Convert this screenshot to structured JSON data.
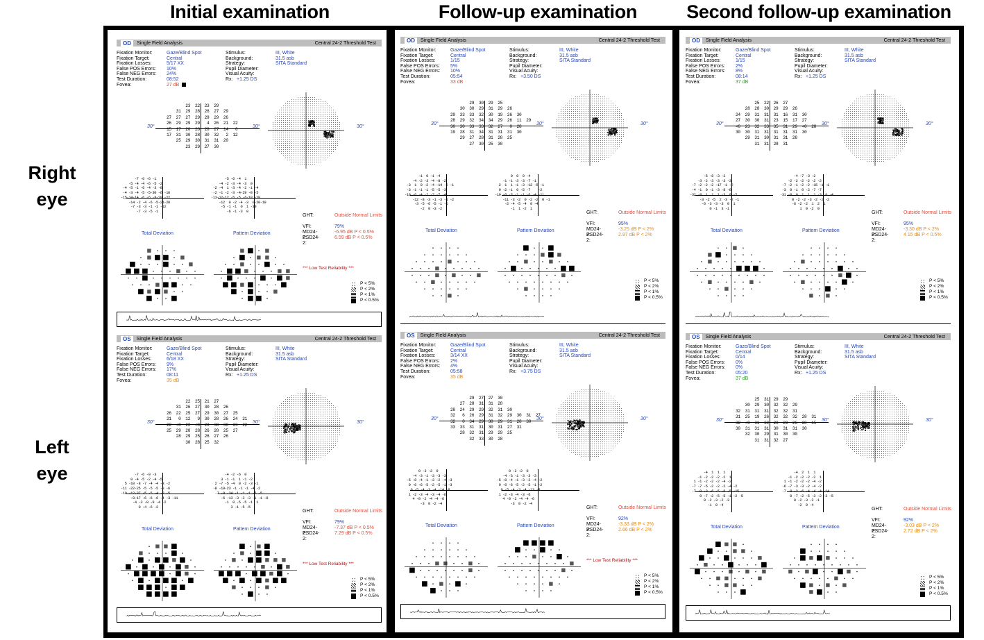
{
  "columns": [
    "Initial examination",
    "Follow-up examination",
    "Second follow-up examination"
  ],
  "rows": [
    "Right eye",
    "Left eye"
  ],
  "common": {
    "title": "Single Field Analysis",
    "test": "Central 24-2 Threshold Test",
    "labels": {
      "fixation_monitor": "Fixation Monitor:",
      "fixation_target": "Fixation Target:",
      "fixation_losses": "Fixation Losses:",
      "false_pos": "False POS Errors:",
      "false_neg": "False NEG Errors:",
      "duration": "Test Duration:",
      "fovea": "Fovea:",
      "stimulus": "Stimulus:",
      "background": "Background:",
      "strategy": "Strategy:",
      "pupil": "Pupil Diameter:",
      "acuity": "Visual Acuity:",
      "rx": "Rx:"
    },
    "values": {
      "fixation_monitor": "Gaze/Blind Spot",
      "fixation_target": "Central",
      "stimulus": "III, White",
      "background": "31.5 asb",
      "strategy": "SITA Standard"
    },
    "deg": "30°",
    "total_deviation": "Total Deviation",
    "pattern_deviation": "Pattern Deviation",
    "ght_label": "GHT:",
    "vfi_label": "VFI:",
    "md_label": "MD24-2:",
    "psd_label": "PSD24-2:",
    "ght_value": "Outside Normal Limits",
    "low_reliability": "*** Low Test Reliability ***",
    "legend": [
      "P < 5%",
      "P < 2%",
      "P < 1%",
      "P < 0.5%"
    ]
  },
  "reports": [
    {
      "eye": "OD",
      "fixation_losses": "5/17 XX",
      "false_pos": "10%",
      "false_neg": "24%",
      "duration": "08:52",
      "rx": "+1.25 DS",
      "fovea": "27 dB",
      "fovea_color": "red",
      "vfi": "79%",
      "md": "-6.95 dB P < 0.5%",
      "psd": "6.59 dB P < 0.5%",
      "md_color": "red",
      "low_reliability": true,
      "grid": [
        "        23  22  23  29        ",
        "    31  29  28  26  27  29    ",
        "27  27  27  29  29  29  26    ",
        "26  29  29  29   4  26  21  22",
        "15  17  20  28  28  27  14   0",
        "17  31  30  28  30  32   2  12",
        "    25  29  30  31  31  20    ",
        "        23  29  27  30        "
      ],
      "td": [
        "       -7 -6 -6 -1       ",
        "    -5 -4 -4 -6 -5 -2    ",
        " -4 -5 -1 -6 -4 -3 -8    ",
        " -4 -3 -4 -5 -5-30 -6 -10",
        "-15-14-14 -6 -6 -8-20 -22",
        "    -14 -2 -4 -6 -5-21-20",
        "     -7 -3 -3 -1 -1 -12   ",
        "        -7 -3 -5 -1      "
      ],
      "pd": [
        "       -5 -6 -4  1       ",
        "    -4 -2 -3 -4 -3  0    ",
        " -2 -4  1 -3 -4 -2 -1 -4 ",
        " -2 -1 -2 -3 -4-29 -8 -5 ",
        "-13-12-12 -5 -5 -6-18 -20",
        "    -12  0 -2 -4 -3  0-20-19",
        "     -5 -1 -1  0  1 -10  ",
        "        -6 -1 -3  0      "
      ]
    },
    {
      "eye": "OD",
      "fixation_losses": "1/15",
      "false_pos": "5%",
      "false_neg": "10%",
      "duration": "05:54",
      "rx": "+3.50 DS",
      "fovea": "33 dB",
      "fovea_color": "red",
      "vfi": "95%",
      "md": "-3.25 dB P < 2%",
      "psd": "2.97 dB P < 2%",
      "md_color": "orange",
      "low_reliability": false,
      "grid": [
        "        29  30  29  25        ",
        "    30  30  29  31  29  26    ",
        "29  33  33  32  30  19  26  30",
        "28  29  32  34  34  29  26  11  29",
        "30  30  33  33  32  27   0  28",
        "19  28  31  34  31  31  31  30",
        "    29  27  28  31  28  25    ",
        "        27  30  25  30        "
      ],
      "td": [
        "       -1  0 -1 -4       ",
        "    -4 -2 -3 -4 -8 -2    ",
        " -3  1  0 -2 -4 -14 -6 -1",
        " -3 -1 -1 -1 -5 -5 -3    ",
        "-10 -6 -4 -2 -2 -7 -4    ",
        "    -12 -8 -3 -1 -3 -1 -2",
        "     -3 -5 -6 -5 -1 -5   ",
        "        -2  0 -3 -2      "
      ],
      "pd": [
        "        0  0  0 -4       ",
        "    -1 -1 -3 -3 -7 -1    ",
        "  2  1  1 -1 -3 -13 -5 -1",
        "  0 -2 -1  0 -5 -7    -2 ",
        "-10 -6 -3 -1 -1 -6 -4 -11",
        "    -11 -3 -2  0 -2 -2  0 -1",
        "     -2 -4 -5 -4  0 -4   ",
        "        -1  1 -2  1      "
      ]
    },
    {
      "eye": "OD",
      "fixation_losses": "1/15",
      "false_pos": "2%",
      "false_neg": "8%",
      "duration": "08:14",
      "rx": "+1.25 DS",
      "fovea": "37 dB",
      "fovea_color": "green",
      "vfi": "95%",
      "md": "-3.30 dB P < 2%",
      "psd": "4.15 dB P < 0.5%",
      "md_color": "orange",
      "low_reliability": false,
      "grid": [
        "        25  22  26  27        ",
        "    28  28  30  29  29  26    ",
        "24  29  31  31  31  16  31  30",
        "27  30  30  31  23  15  17  27",
        "<0  23  32  33  35  31  29  <0  28",
        "30  30  31  31  31  31  31  30",
        "    29  31  30  31  31  28    ",
        "        31  31  28  31        "
      ],
      "td": [
        "       -5 -8 -3 -2       ",
        "    -3 -2 -3 -3 -3 -3    ",
        " -7 -2 -2 -2 -17 -1 -2   ",
        " -4 -1  0 -1 -3 -8 -8    ",
        "-32 -8  1  1  1 -3  0 -5 ",
        "     -3 -2 -5  2 -3 -2 -1 ",
        "      -6 -3 -3 -3  0  1   ",
        "          0 -1  3 -1      "
      ],
      "pd": [
        "       -4 -7 -3 -2       ",
        "    -2 -2 -2 -2 -2 -2    ",
        " -7 -2 -1 -2 -2 -15 -1 -1",
        " -3  0 -1  0 -2 -7 -7    ",
        "-31 -8  0  1  1  1 -3  0 -4",
        "      0 -2 -2 -3 -2 -2 -2 ",
        "      -6 -2 -2  1  2  1   ",
        "          1  0 -2  0      "
      ]
    },
    {
      "eye": "OS",
      "fixation_losses": "6/18 XX",
      "false_pos": "9%",
      "false_neg": "17%",
      "duration": "08:11",
      "rx": "+1.25 DS",
      "fovea": "35 dB",
      "fovea_color": "orange",
      "vfi": "79%",
      "md": "-7.37 dB P < 0.5%",
      "psd": "7.29 dB P < 0.5%",
      "md_color": "red",
      "low_reliability": true,
      "grid": [
        "        22  25  21  27        ",
        "    31  26  27  30  28  26    ",
        "26  22  25  27  29  30  27  25",
        "21   0  12   9  30  28  26  24  21",
        "22  <0  22  <0  28  30  30  23  22",
        "25  29  28  28  26  28  25  27",
        "    28  29  25  26  27  26    ",
        "        30  28  25  32        "
      ],
      "td": [
        "       -7 -6 -0 -3       ",
        "     0 -4 -5 -2 -4 -5    ",
        "  5 -10 -8 -7 -4 -4 -3 -2 ",
        "-11 -22-25 -5 -5 -5 -8 -6 ",
        "-10 -12-37 -5 -5 -4 -8 -5 ",
        "     -9-17 -6 -6 -6 -4 -3 -11",
        "      -4 -3 -8 -9 -4 -2  ",
        "         0 -4 -6 -2      "
      ],
      "pd": [
        "       -4 -2 -6  0       ",
        "     3 -1 -1  1 -1 -2    ",
        "  2 -7 -5 -4  0 -2 -3 -1 ",
        " -8 -19-23 -1 -1 -1 -4 -2",
        "  -7 -9 -34 -1 -1 -1 -6 -5",
        "     -6 -13 -3 -3 -3 -1 -1 -8",
        "       -1  0 -5 -5 -1  1  ",
        "          3 -1 -5 -5      "
      ]
    },
    {
      "eye": "OS",
      "fixation_losses": "3/14 XX",
      "false_pos": "2%",
      "false_neg": "4%",
      "duration": "05:58",
      "rx": "+3.75 DS",
      "fovea": "35 dB",
      "fovea_color": "orange",
      "vfi": "92%",
      "md": "-3.33 dB P < 2%",
      "psd": "2.66 dB P < 2%",
      "md_color": "orange",
      "low_reliability": true,
      "grid": [
        "        29  27  27  30        ",
        "    27  28  31  31  28        ",
        "28  24  29  29  32  31  30    ",
        "32   6  26  29  31  32  29  30  31  27",
        "32   0  34  29  30  29  31  28  30",
        "33  33  31  31  30  31  27  31",
        "    28  32  31  29  29  25    ",
        "        32  33  30  28        "
      ],
      "td": [
        "       0 -3 -3  0        ",
        "    -4 -3 -1 -3 -3 -3    ",
        " -5 -8 -4 -1 -3 -2 -4 -3 ",
        "  0 -6 -6 -5 -2 -5 -1 -3 ",
        "   0 -5 -4 -3 -4 -14 -8  ",
        "  1 -2 -3 -4 -3 -4 -6    ",
        "    4 -0 -2 -4 -4 -6     ",
        "        -3  0 -2 -4      "
      ],
      "pd": [
        "       0 -2 -2  0        ",
        "    -4 -3 -1 -3 -3 -3    ",
        " -5 -8 -4 -1 -3 -2 -4 -2 ",
        "  0 -6 -6 -5 -2 -5 -1 -2 ",
        "   0 -5 -4 -3 -4 -13 -8  ",
        "  1 -2 -3 -4 -3 -6       ",
        "    4 -0 -2 -4 -4 -6     ",
        "        -3  0 -2 -4      "
      ]
    },
    {
      "eye": "OS",
      "fixation_losses": "0/14",
      "false_pos": "0%",
      "false_neg": "0%",
      "duration": "05:20",
      "rx": "+1.25 DS",
      "fovea": "37 dB",
      "fovea_color": "green",
      "vfi": "92%",
      "md": "-3.03 dB P < 2%",
      "psd": "2.72 dB P < 2%",
      "md_color": "orange",
      "low_reliability": false,
      "grid": [
        "        25  31  29  29        ",
        "    30  29  30  32  32  29    ",
        "32  31  31  31  32  32  31    ",
        "31  25  19  26  32  32  32  28  31",
        "32  <0  31  30  28  29  26  28  15",
        "30  31  31  31  30  31  31  30",
        "    32  30  29  31  30  30    ",
        "        31  31  32  27        "
      ],
      "td": [
        "       -4  1  1  1       ",
        "    -1 -2 -2 -2 -2  1    ",
        "  1 -1 -2 -2 -2 -4 -2    ",
        " -7 -7 -5 -2 -2 -2 -4 -2 ",
        " -7  0 -3 -6 -5 -6 -5 -15",
        "     0 -7 -2 -5 -5 -1 -2 -5",
        "       0 -2 -3 -2 -3     ",
        "         -1  0 -4        "
      ],
      "pd": [
        "       -4  2  1  1       ",
        "    -1 -2 -2 -2 -2  1    ",
        "  1 -1 -2 -2 -2 -4 -2    ",
        " -6 -7 -3 -3 -2 -4 -2    ",
        " -7  0 -2 -6 -4 -4 -4 -14",
        "     0 -7 -2 -5 -3 -2 -2 -5",
        "       0 -2 -3 -2 -1     ",
        "         -2  0 -4        "
      ]
    }
  ]
}
